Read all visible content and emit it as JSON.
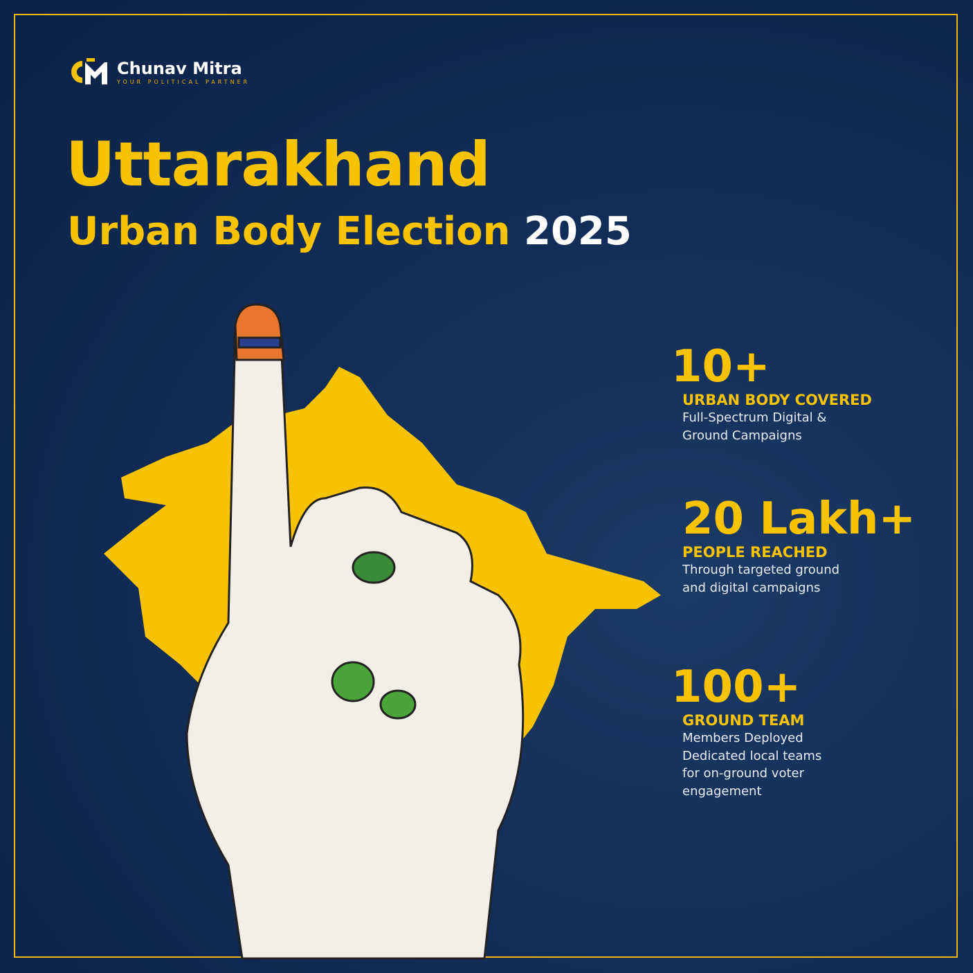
{
  "brand": {
    "name": "Chunav Mitra",
    "tagline": "YOUR POLITICAL PARTNER",
    "logo_letters": "CM"
  },
  "title": "Uttarakhand",
  "subtitle": {
    "text": "Urban Body Election",
    "year": "2025"
  },
  "colors": {
    "accent": "#f7c200",
    "background": "#122d57",
    "text": "#ffffff"
  },
  "stats": [
    {
      "value": "10+",
      "label": "URBAN BODY COVERED",
      "description": "Full-Spectrum Digital &\nGround Campaigns"
    },
    {
      "value": "20 Lakh+",
      "label": "PEOPLE REACHED",
      "description": "Through targeted ground\nand digital campaigns"
    },
    {
      "value": "100+",
      "label": "GROUND TEAM",
      "description": "Members Deployed\nDedicated local teams\nfor on-ground voter\nengagement"
    }
  ]
}
